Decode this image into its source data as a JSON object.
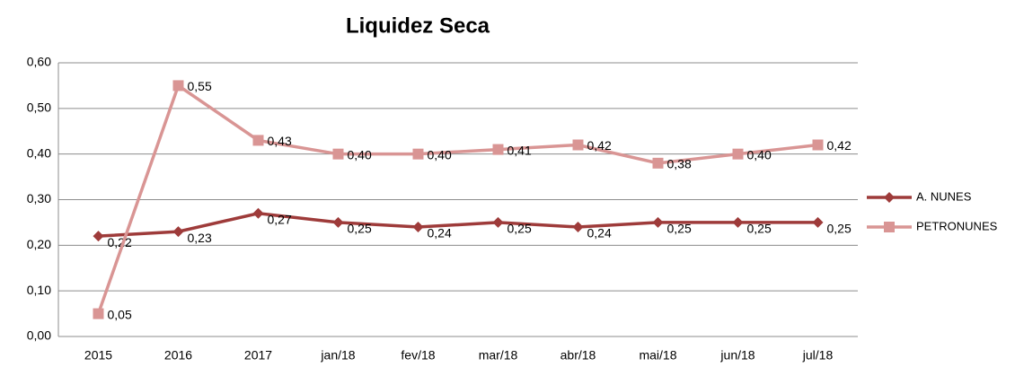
{
  "chart_data": {
    "type": "line",
    "title": "Liquidez Seca",
    "categories": [
      "2015",
      "2016",
      "2017",
      "jan/18",
      "fev/18",
      "mar/18",
      "abr/18",
      "mai/18",
      "jun/18",
      "jul/18"
    ],
    "series": [
      {
        "name": "A. NUNES",
        "color": "#9e3b3a",
        "marker": "diamond",
        "values": [
          0.22,
          0.23,
          0.27,
          0.25,
          0.24,
          0.25,
          0.24,
          0.25,
          0.25,
          0.25
        ],
        "value_labels": [
          "0,22",
          "0,23",
          "0,27",
          "0,25",
          "0,24",
          "0,25",
          "0,24",
          "0,25",
          "0,25",
          "0,25"
        ]
      },
      {
        "name": "PETRONUNES",
        "color": "#d99594",
        "marker": "square",
        "values": [
          0.05,
          0.55,
          0.43,
          0.4,
          0.4,
          0.41,
          0.42,
          0.38,
          0.4,
          0.42
        ],
        "value_labels": [
          "0,05",
          "0,55",
          "0,43",
          "0,40",
          "0,40",
          "0,41",
          "0,42",
          "0,38",
          "0,40",
          "0,42"
        ]
      }
    ],
    "ylim": [
      0,
      0.6
    ],
    "yticks": [
      {
        "value": 0,
        "label": "0,00"
      },
      {
        "value": 0.1,
        "label": "0,10"
      },
      {
        "value": 0.2,
        "label": "0,20"
      },
      {
        "value": 0.3,
        "label": "0,30"
      },
      {
        "value": 0.4,
        "label": "0,40"
      },
      {
        "value": 0.5,
        "label": "0,50"
      },
      {
        "value": 0.6,
        "label": "0,60"
      }
    ],
    "grid": true,
    "legend": "right"
  }
}
